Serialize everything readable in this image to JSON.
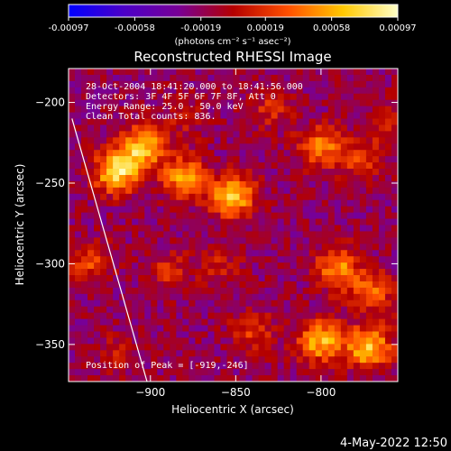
{
  "colorbar": {
    "tick_labels": [
      "-0.00097",
      "-0.00058",
      "-0.00019",
      "0.00019",
      "0.00058",
      "0.00097"
    ],
    "tick_values": [
      -0.00097,
      -0.00058,
      -0.00019,
      0.00019,
      0.00058,
      0.00097
    ],
    "range": [
      -0.00097,
      0.00097
    ],
    "units": "(photons cm⁻² s⁻¹ asec⁻²)",
    "stops": [
      "#0000ff",
      "#4b00c8",
      "#780096",
      "#b40000",
      "#ff5000",
      "#ffc800",
      "#ffffc8"
    ]
  },
  "plot": {
    "title": "Reconstructed RHESSI Image",
    "xlabel": "Heliocentric X (arcsec)",
    "ylabel": "Heliocentric Y (arcsec)",
    "xlim": [
      -948,
      -755
    ],
    "ylim": [
      -373,
      -179
    ],
    "x_ticks": [
      -900,
      -850,
      -800
    ],
    "y_ticks": [
      -200,
      -250,
      -300,
      -350
    ],
    "x_tick_labels": [
      "−900",
      "−850",
      "−800"
    ],
    "y_tick_labels": [
      "−200",
      "−250",
      "−300",
      "−350"
    ],
    "info_lines": [
      "28-Oct-2004 18:41:20.000 to 18:41:56.000",
      "Detectors: 3F 4F 5F 6F 7F 8F, Att 0",
      "Energy Range: 25.0 - 50.0 keV",
      "Clean    Total counts: 836."
    ],
    "peak_label": "Position of Peak = [-919,-246]"
  },
  "footer": {
    "timestamp": "4-May-2022 12:50"
  },
  "chart_data": {
    "type": "heatmap",
    "title": "Reconstructed RHESSI Image",
    "xlabel": "Heliocentric X (arcsec)",
    "ylabel": "Heliocentric Y (arcsec)",
    "xlim": [
      -948,
      -755
    ],
    "ylim": [
      -373,
      -179
    ],
    "value_range": [
      -0.00097,
      0.00097
    ],
    "peak": {
      "x": -919,
      "y": -246
    },
    "hotspots": [
      {
        "x": -920,
        "y": -243,
        "value": 0.00097
      },
      {
        "x": -905,
        "y": -228,
        "value": 0.00085
      },
      {
        "x": -880,
        "y": -246,
        "value": 0.0007
      },
      {
        "x": -852,
        "y": -258,
        "value": 0.0009
      },
      {
        "x": -800,
        "y": -228,
        "value": 0.0006
      },
      {
        "x": -775,
        "y": -235,
        "value": 0.0004
      },
      {
        "x": -830,
        "y": -205,
        "value": 0.0003
      },
      {
        "x": -760,
        "y": -210,
        "value": 0.00025
      },
      {
        "x": -880,
        "y": -210,
        "value": 0.0002
      },
      {
        "x": -790,
        "y": -303,
        "value": 0.00065
      },
      {
        "x": -770,
        "y": -318,
        "value": 0.0005
      },
      {
        "x": -800,
        "y": -348,
        "value": 0.0008
      },
      {
        "x": -772,
        "y": -352,
        "value": 0.00085
      },
      {
        "x": -840,
        "y": -343,
        "value": 0.00035
      },
      {
        "x": -935,
        "y": -300,
        "value": 0.0004
      },
      {
        "x": -890,
        "y": -305,
        "value": 0.0003
      },
      {
        "x": -920,
        "y": -355,
        "value": 0.0002
      },
      {
        "x": -860,
        "y": -300,
        "value": 0.00025
      }
    ],
    "limb_line": [
      {
        "x": -946,
        "y": -210
      },
      {
        "x": -902,
        "y": -373
      }
    ]
  }
}
